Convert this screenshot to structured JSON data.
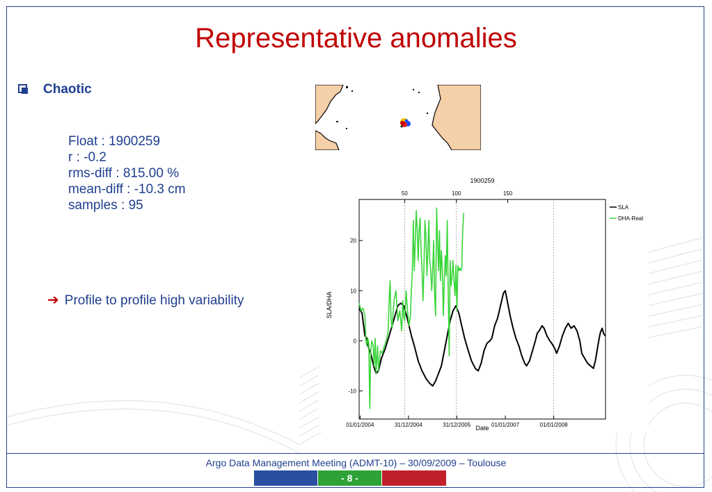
{
  "slide": {
    "title": "Representative anomalies",
    "bullet": "Chaotic",
    "stats": {
      "float": "Float : 1900259",
      "r": "r : -0.2",
      "rms_diff": "rms-diff : 815.00 %",
      "mean_diff": "mean-diff : -10.3 cm",
      "samples": "samples : 95"
    },
    "conclusion": "Profile to profile high variability",
    "arrow_icon": "arrow-right-icon",
    "footer": "Argo Data Management Meeting (ADMT-10) – 30/09/2009 – Toulouse",
    "page_number": "- 8 -",
    "colors": {
      "title": "#c00000",
      "text": "#1f3f8f",
      "footer_blue": "#2a4fa0",
      "footer_green": "#2ea236",
      "footer_red": "#c0202c"
    }
  },
  "chart_data": {
    "type": "line",
    "title": "1900259",
    "xlabel": "Date",
    "ylabel": "SLA/DHA",
    "x_ticks": [
      "01/01/2004",
      "31/12/2004",
      "31/12/2005",
      "01/01/2007",
      "01/01/2008"
    ],
    "top_ticks": [
      "50",
      "100",
      "150"
    ],
    "y_ticks": [
      "20",
      "10",
      "0",
      "-10"
    ],
    "ylim": [
      -15.6,
      28.2
    ],
    "xlim_years": [
      2003.98,
      2009.07
    ],
    "vertical_gridlines_years": [
      2004.92,
      2005.99,
      2008.0
    ],
    "legend_placement": "top-right",
    "series": [
      {
        "name": "SLA",
        "color": "#000000",
        "points": [
          [
            2003.98,
            6.5
          ],
          [
            2004.04,
            5.5
          ],
          [
            2004.1,
            1.0
          ],
          [
            2004.14,
            0.5
          ],
          [
            2004.18,
            -1.5
          ],
          [
            2004.22,
            -2.5
          ],
          [
            2004.28,
            -5.0
          ],
          [
            2004.33,
            -6.5
          ],
          [
            2004.38,
            -6.0
          ],
          [
            2004.44,
            -3.5
          ],
          [
            2004.52,
            -1.5
          ],
          [
            2004.6,
            1.0
          ],
          [
            2004.66,
            3.0
          ],
          [
            2004.72,
            5.0
          ],
          [
            2004.78,
            7.0
          ],
          [
            2004.84,
            7.5
          ],
          [
            2004.9,
            7.0
          ],
          [
            2004.96,
            5.0
          ],
          [
            2005.0,
            3.5
          ],
          [
            2005.06,
            1.0
          ],
          [
            2005.12,
            -1.0
          ],
          [
            2005.2,
            -4.0
          ],
          [
            2005.28,
            -6.0
          ],
          [
            2005.36,
            -7.5
          ],
          [
            2005.44,
            -8.5
          ],
          [
            2005.5,
            -9.0
          ],
          [
            2005.56,
            -8.0
          ],
          [
            2005.62,
            -6.5
          ],
          [
            2005.68,
            -5.0
          ],
          [
            2005.74,
            -2.0
          ],
          [
            2005.8,
            1.0
          ],
          [
            2005.86,
            4.0
          ],
          [
            2005.92,
            6.0
          ],
          [
            2005.98,
            7.0
          ],
          [
            2006.04,
            5.5
          ],
          [
            2006.1,
            3.0
          ],
          [
            2006.16,
            0.5
          ],
          [
            2006.22,
            -1.5
          ],
          [
            2006.3,
            -4.0
          ],
          [
            2006.38,
            -5.5
          ],
          [
            2006.44,
            -6.0
          ],
          [
            2006.5,
            -4.5
          ],
          [
            2006.56,
            -2.0
          ],
          [
            2006.62,
            -0.5
          ],
          [
            2006.68,
            0.0
          ],
          [
            2006.72,
            0.5
          ],
          [
            2006.78,
            3.0
          ],
          [
            2006.84,
            4.5
          ],
          [
            2006.9,
            7.0
          ],
          [
            2006.96,
            9.5
          ],
          [
            2007.0,
            10.0
          ],
          [
            2007.04,
            8.0
          ],
          [
            2007.1,
            5.0
          ],
          [
            2007.16,
            2.5
          ],
          [
            2007.22,
            0.5
          ],
          [
            2007.28,
            -1.0
          ],
          [
            2007.34,
            -3.0
          ],
          [
            2007.4,
            -4.5
          ],
          [
            2007.44,
            -5.0
          ],
          [
            2007.5,
            -4.0
          ],
          [
            2007.56,
            -2.0
          ],
          [
            2007.62,
            0.0
          ],
          [
            2007.66,
            1.5
          ],
          [
            2007.7,
            2.0
          ],
          [
            2007.76,
            3.0
          ],
          [
            2007.8,
            2.5
          ],
          [
            2007.86,
            1.0
          ],
          [
            2007.92,
            0.0
          ],
          [
            2007.96,
            -0.5
          ],
          [
            2008.02,
            -1.5
          ],
          [
            2008.06,
            -2.5
          ],
          [
            2008.12,
            -1.0
          ],
          [
            2008.18,
            1.0
          ],
          [
            2008.24,
            2.5
          ],
          [
            2008.3,
            3.5
          ],
          [
            2008.36,
            2.5
          ],
          [
            2008.42,
            3.0
          ],
          [
            2008.48,
            2.0
          ],
          [
            2008.54,
            0.0
          ],
          [
            2008.58,
            -2.5
          ],
          [
            2008.64,
            -3.5
          ],
          [
            2008.7,
            -4.5
          ],
          [
            2008.76,
            -5.0
          ],
          [
            2008.82,
            -5.5
          ],
          [
            2008.86,
            -4.0
          ],
          [
            2008.92,
            -0.5
          ],
          [
            2008.96,
            1.5
          ],
          [
            2009.0,
            2.5
          ],
          [
            2009.03,
            1.5
          ],
          [
            2009.06,
            1.0
          ]
        ]
      },
      {
        "name": "DHA-Real",
        "color": "#3ad53a",
        "points": [
          [
            2003.98,
            7.5
          ],
          [
            2004.02,
            6.0
          ],
          [
            2004.06,
            6.5
          ],
          [
            2004.1,
            5.0
          ],
          [
            2004.12,
            0.0
          ],
          [
            2004.14,
            -1.0
          ],
          [
            2004.16,
            0.5
          ],
          [
            2004.18,
            -0.5
          ],
          [
            2004.2,
            -13.5
          ],
          [
            2004.22,
            -2.0
          ],
          [
            2004.24,
            0.0
          ],
          [
            2004.27,
            -1.0
          ],
          [
            2004.29,
            -5.0
          ],
          [
            2004.31,
            0.5
          ],
          [
            2004.33,
            -6.5
          ],
          [
            2004.36,
            -1.0
          ],
          [
            2004.38,
            -6.0
          ],
          [
            2004.42,
            -2.0
          ],
          [
            2004.46,
            -2.5
          ],
          [
            2004.5,
            -1.0
          ],
          [
            2004.54,
            0.0
          ],
          [
            2004.58,
            2.0
          ],
          [
            2004.6,
            8.0
          ],
          [
            2004.62,
            12.0
          ],
          [
            2004.64,
            4.0
          ],
          [
            2004.66,
            2.5
          ],
          [
            2004.7,
            8.0
          ],
          [
            2004.74,
            10.0
          ],
          [
            2004.78,
            4.0
          ],
          [
            2004.82,
            6.0
          ],
          [
            2004.86,
            2.0
          ],
          [
            2004.88,
            8.0
          ],
          [
            2004.9,
            5.0
          ],
          [
            2004.92,
            4.0
          ],
          [
            2004.95,
            10.0
          ],
          [
            2004.98,
            6.0
          ],
          [
            2005.01,
            3.0
          ],
          [
            2005.04,
            5.0
          ],
          [
            2005.06,
            10.0
          ],
          [
            2005.08,
            14.0
          ],
          [
            2005.1,
            24.0
          ],
          [
            2005.12,
            14.0
          ],
          [
            2005.14,
            20.0
          ],
          [
            2005.16,
            26.0
          ],
          [
            2005.18,
            22.0
          ],
          [
            2005.2,
            16.0
          ],
          [
            2005.22,
            22.0
          ],
          [
            2005.24,
            24.5
          ],
          [
            2005.26,
            18.0
          ],
          [
            2005.28,
            14.0
          ],
          [
            2005.3,
            8.0
          ],
          [
            2005.32,
            15.0
          ],
          [
            2005.34,
            24.0
          ],
          [
            2005.36,
            21.0
          ],
          [
            2005.38,
            13.0
          ],
          [
            2005.4,
            18.0
          ],
          [
            2005.42,
            24.0
          ],
          [
            2005.44,
            16.0
          ],
          [
            2005.46,
            14.0
          ],
          [
            2005.48,
            10.0
          ],
          [
            2005.5,
            14.0
          ],
          [
            2005.52,
            20.0
          ],
          [
            2005.54,
            9.0
          ],
          [
            2005.56,
            5.0
          ],
          [
            2005.58,
            26.5
          ],
          [
            2005.6,
            20.0
          ],
          [
            2005.62,
            14.0
          ],
          [
            2005.64,
            22.0
          ],
          [
            2005.66,
            12.0
          ],
          [
            2005.68,
            18.0
          ],
          [
            2005.7,
            14.0
          ],
          [
            2005.72,
            5.0
          ],
          [
            2005.74,
            12.0
          ],
          [
            2005.76,
            17.0
          ],
          [
            2005.78,
            13.0
          ],
          [
            2005.8,
            24.0
          ],
          [
            2005.82,
            10.0
          ],
          [
            2005.84,
            -3.0
          ],
          [
            2005.86,
            16.0
          ],
          [
            2005.88,
            11.0
          ],
          [
            2005.9,
            13.0
          ],
          [
            2005.92,
            16.0
          ],
          [
            2005.94,
            12.0
          ],
          [
            2005.96,
            9.0
          ],
          [
            2005.98,
            15.0
          ],
          [
            2006.0,
            6.0
          ],
          [
            2006.02,
            15.0
          ],
          [
            2006.04,
            14.0
          ],
          [
            2006.06,
            14.5
          ],
          [
            2006.08,
            14.0
          ],
          [
            2006.1,
            14.5
          ],
          [
            2006.12,
            22.0
          ],
          [
            2006.14,
            25.5
          ]
        ]
      }
    ]
  }
}
